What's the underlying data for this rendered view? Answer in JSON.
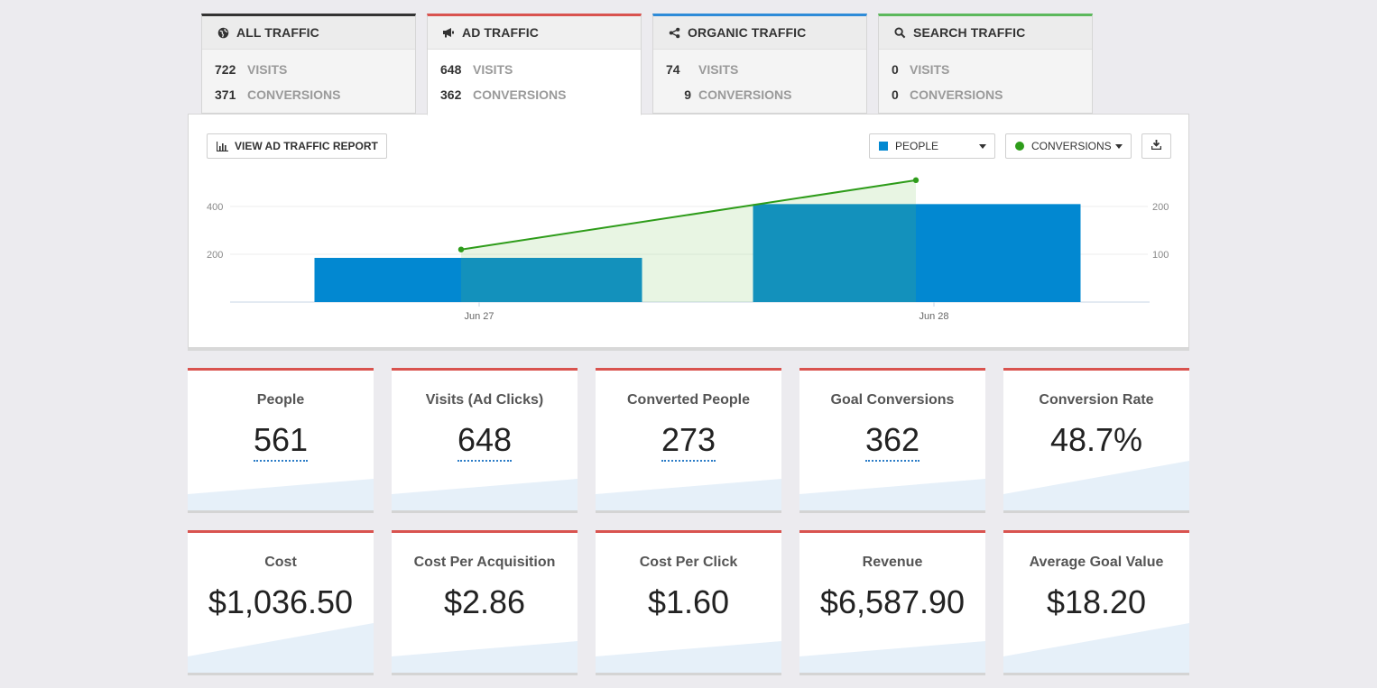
{
  "colors": {
    "all": "#333333",
    "ad": "#d9534f",
    "organic": "#2e8bd8",
    "search": "#5cb85c",
    "people_bar": "#0288d1",
    "conversions_line": "#2e9c1a"
  },
  "tabs": [
    {
      "label": "ALL TRAFFIC",
      "icon": "globe-icon",
      "visits": "722",
      "visits_label": "VISITS",
      "conversions": "371",
      "conversions_label": "CONVERSIONS"
    },
    {
      "label": "AD TRAFFIC",
      "icon": "megaphone-icon",
      "visits": "648",
      "visits_label": "VISITS",
      "conversions": "362",
      "conversions_label": "CONVERSIONS"
    },
    {
      "label": "ORGANIC TRAFFIC",
      "icon": "share-icon",
      "visits": "74",
      "visits_label": "VISITS",
      "conversions": "9",
      "conversions_label": "CONVERSIONS"
    },
    {
      "label": "SEARCH TRAFFIC",
      "icon": "search-icon",
      "visits": "0",
      "visits_label": "VISITS",
      "conversions": "0",
      "conversions_label": "CONVERSIONS"
    }
  ],
  "toolbar": {
    "report_label": "VIEW AD TRAFFIC REPORT",
    "people_select": "PEOPLE",
    "conversions_select": "CONVERSIONS"
  },
  "chart_data": {
    "type": "bar",
    "categories": [
      "Jun 27",
      "Jun 28"
    ],
    "series": [
      {
        "name": "PEOPLE",
        "type": "bar",
        "axis": "left",
        "values": [
          185,
          410
        ]
      },
      {
        "name": "CONVERSIONS",
        "type": "area",
        "axis": "right",
        "values": [
          110,
          255
        ]
      }
    ],
    "y_left_ticks": [
      200,
      400
    ],
    "y_left_range": [
      0,
      400
    ],
    "y_right_ticks": [
      100,
      200
    ],
    "y_right_range": [
      0,
      200
    ],
    "grid": true
  },
  "cards_row1": [
    {
      "title": "People",
      "value": "561"
    },
    {
      "title": "Visits (Ad Clicks)",
      "value": "648"
    },
    {
      "title": "Converted People",
      "value": "273"
    },
    {
      "title": "Goal Conversions",
      "value": "362"
    },
    {
      "title": "Conversion Rate",
      "value": "48.7%"
    }
  ],
  "cards_row2": [
    {
      "title": "Cost",
      "value": "$1,036.50"
    },
    {
      "title": "Cost Per Acquisition",
      "value": "$2.86"
    },
    {
      "title": "Cost Per Click",
      "value": "$1.60"
    },
    {
      "title": "Revenue",
      "value": "$6,587.90"
    },
    {
      "title": "Average Goal Value",
      "value": "$18.20"
    }
  ]
}
